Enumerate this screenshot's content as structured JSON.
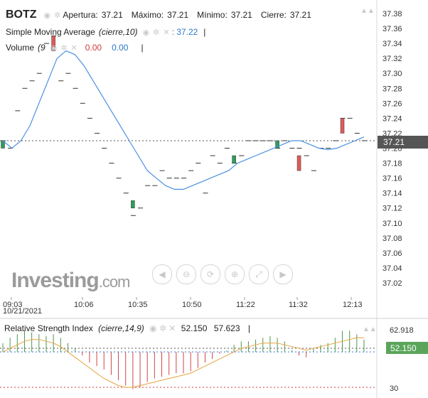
{
  "header": {
    "symbol": "BOTZ",
    "open_label": "Apertura:",
    "open_value": "37.21",
    "high_label": "Máximo:",
    "high_value": "37.21",
    "low_label": "Mínimo:",
    "low_value": "37.21",
    "close_label": "Cierre:",
    "close_value": "37.21"
  },
  "indicators": {
    "sma_label": "Simple Moving Average",
    "sma_params": "(cierre,10)",
    "sma_value": ": 37.22",
    "volume_label": "Volume",
    "volume_params": "(9",
    "volume_value_1": "0.00",
    "volume_value_2": "0.00"
  },
  "rsi": {
    "label": "Relative Strength Index",
    "params": "(cierre,14,9)",
    "value_1": "52.150",
    "value_2": "57.623",
    "axis_top": "62.918",
    "axis_bottom": "30",
    "badge": "52.150"
  },
  "price_badge": "37.21",
  "date_label": "10/21/2021",
  "watermark": {
    "brand": "Investing",
    "suffix": ".com"
  },
  "colors": {
    "sma_line": "#4a90e2",
    "up_candle": "#2e9e5a",
    "down_candle": "#e05a5a",
    "rsi_signal": "#e6a23c"
  },
  "icons": [
    "eye-icon",
    "gear-icon",
    "close-icon",
    "triangle-up-icon",
    "zoom-in-icon",
    "zoom-out-icon",
    "reset-icon",
    "scroll-left-icon",
    "scroll-right-icon"
  ],
  "chart_data": [
    {
      "type": "line",
      "title": "BOTZ",
      "x_tick_labels": [
        "09:03",
        "10:06",
        "10:35",
        "10:50",
        "11:22",
        "11:32",
        "12:13"
      ],
      "y_tick_labels": [
        "37.38",
        "37.36",
        "37.34",
        "37.32",
        "37.30",
        "37.28",
        "37.26",
        "37.24",
        "37.22",
        "37.20",
        "37.18",
        "37.16",
        "37.14",
        "37.12",
        "37.10",
        "37.08",
        "37.06",
        "37.04",
        "37.02"
      ],
      "ylim": [
        37.0,
        37.39
      ],
      "reference_line": 37.21,
      "series": [
        {
          "name": "Simple Moving Average",
          "values": [
            37.21,
            37.2,
            37.21,
            37.23,
            37.26,
            37.29,
            37.32,
            37.33,
            37.325,
            37.31,
            37.29,
            37.27,
            37.25,
            37.23,
            37.21,
            37.19,
            37.17,
            37.16,
            37.15,
            37.145,
            37.145,
            37.15,
            37.155,
            37.16,
            37.165,
            37.17,
            37.18,
            37.185,
            37.19,
            37.195,
            37.2,
            37.205,
            37.21,
            37.21,
            37.205,
            37.2,
            37.198,
            37.2,
            37.205,
            37.21,
            37.215
          ]
        }
      ],
      "price_marks": [
        37.21,
        37.2,
        37.25,
        37.28,
        37.29,
        37.3,
        37.34,
        37.35,
        37.29,
        37.3,
        37.28,
        37.26,
        37.24,
        37.22,
        37.2,
        37.18,
        37.16,
        37.14,
        37.11,
        37.12,
        37.15,
        37.15,
        37.17,
        37.16,
        37.16,
        37.16,
        37.17,
        37.18,
        37.14,
        37.19,
        37.18,
        37.2,
        37.18,
        37.19,
        37.21,
        37.21,
        37.21,
        37.21,
        37.2,
        37.21,
        37.2,
        37.2,
        37.19,
        37.17,
        37.2,
        37.2,
        37.21,
        37.24,
        37.24,
        37.22,
        37.21
      ],
      "candles": [
        {
          "index": 0,
          "open": 37.2,
          "close": 37.21,
          "dir": "up"
        },
        {
          "index": 7,
          "open": 37.35,
          "close": 37.33,
          "dir": "down"
        },
        {
          "index": 18,
          "open": 37.12,
          "close": 37.13,
          "dir": "up"
        },
        {
          "index": 32,
          "open": 37.18,
          "close": 37.19,
          "dir": "up"
        },
        {
          "index": 38,
          "open": 37.2,
          "close": 37.21,
          "dir": "up"
        },
        {
          "index": 41,
          "open": 37.19,
          "close": 37.17,
          "dir": "down"
        },
        {
          "index": 47,
          "open": 37.24,
          "close": 37.22,
          "dir": "down"
        }
      ]
    },
    {
      "type": "bar",
      "title": "Relative Strength Index",
      "ylim": [
        25,
        70
      ],
      "axis_labels": [
        "62.918",
        "30"
      ],
      "baseline": 50,
      "rsi_values": [
        55,
        58,
        60,
        62,
        61,
        60,
        59,
        60,
        58,
        55,
        52,
        48,
        44,
        42,
        40,
        37,
        34,
        31,
        29,
        30,
        33,
        35,
        36,
        37,
        38,
        38,
        39,
        41,
        44,
        46,
        49,
        51,
        54,
        56,
        56,
        57,
        58,
        59,
        58,
        56,
        51,
        48,
        47,
        52,
        54,
        55,
        58,
        62,
        62,
        60,
        57
      ],
      "signal_values": [
        50,
        52,
        54,
        56,
        57,
        57,
        56,
        55,
        53,
        50,
        47,
        44,
        41,
        38,
        35,
        33,
        31,
        30,
        30,
        31,
        32,
        33,
        34,
        35,
        36,
        37,
        38,
        40,
        42,
        44,
        46,
        48,
        50,
        52,
        53,
        54,
        55,
        55,
        55,
        54,
        53,
        52,
        51,
        52,
        53,
        54,
        55,
        56,
        57,
        58,
        58
      ]
    }
  ]
}
